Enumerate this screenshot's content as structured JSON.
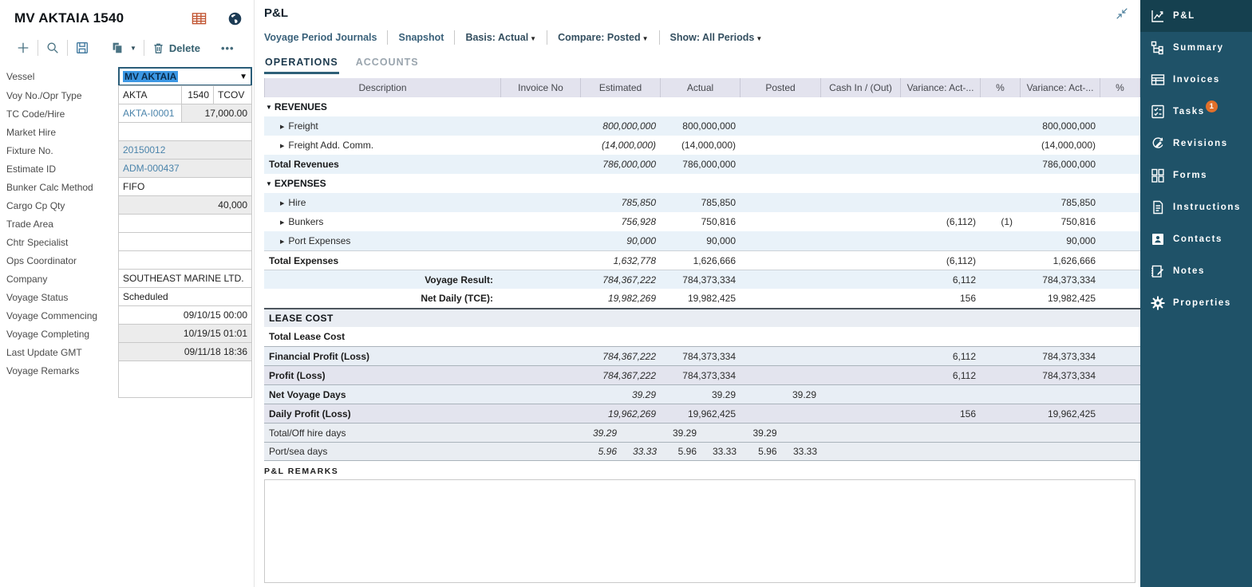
{
  "left_panel": {
    "title": "MV AKTAIA 1540",
    "toolbar": {
      "delete_label": "Delete"
    },
    "fields": [
      {
        "label": "Vessel",
        "type": "dropdown",
        "value": "MV AKTAIA"
      },
      {
        "label": "Voy No./Opr Type",
        "type": "triple",
        "parts": [
          {
            "v": "AKTA",
            "align": "left"
          },
          {
            "v": "1540",
            "align": "right"
          },
          {
            "v": "TCOV",
            "align": "left"
          }
        ]
      },
      {
        "label": "TC Code/Hire",
        "type": "pair",
        "left": {
          "v": "AKTA-I0001",
          "link": true
        },
        "right": {
          "v": "17,000.00",
          "gray": true
        }
      },
      {
        "label": "Market Hire",
        "type": "text",
        "value": ""
      },
      {
        "label": "Fixture No.",
        "type": "text",
        "value": "20150012",
        "link": true,
        "gray": true
      },
      {
        "label": "Estimate ID",
        "type": "text",
        "value": "ADM-000437",
        "link": true,
        "gray": true
      },
      {
        "label": "Bunker Calc Method",
        "type": "text",
        "value": "FIFO"
      },
      {
        "label": "Cargo Cp Qty",
        "type": "text",
        "value": "40,000",
        "gray": true,
        "align": "right"
      },
      {
        "label": "Trade Area",
        "type": "text",
        "value": ""
      },
      {
        "label": "Chtr Specialist",
        "type": "text",
        "value": ""
      },
      {
        "label": "Ops Coordinator",
        "type": "text",
        "value": ""
      },
      {
        "label": "Company",
        "type": "text",
        "value": "SOUTHEAST MARINE LTD."
      },
      {
        "label": "Voyage Status",
        "type": "text",
        "value": "Scheduled"
      },
      {
        "label": "Voyage Commencing",
        "type": "text",
        "value": "09/10/15 00:00",
        "align": "right"
      },
      {
        "label": "Voyage Completing",
        "type": "text",
        "value": "10/19/15 01:01",
        "gray": true,
        "align": "right"
      },
      {
        "label": "Last Update GMT",
        "type": "text",
        "value": "09/11/18 18:36",
        "gray": true,
        "align": "right"
      },
      {
        "label": "Voyage Remarks",
        "type": "textarea",
        "value": ""
      }
    ]
  },
  "pnl": {
    "title": "P&L",
    "links": [
      "Voyage Period Journals",
      "Snapshot"
    ],
    "filters": [
      {
        "label": "Basis: Actual"
      },
      {
        "label": "Compare: Posted"
      },
      {
        "label": "Show: All Periods"
      }
    ],
    "tabs": [
      {
        "label": "OPERATIONS",
        "active": true
      },
      {
        "label": "ACCOUNTS",
        "active": false
      }
    ],
    "columns": [
      "Description",
      "Invoice No",
      "Estimated",
      "Actual",
      "Posted",
      "Cash In / (Out)",
      "Variance: Act-...",
      "%",
      "Variance: Act-...",
      "%"
    ],
    "rows": [
      {
        "type": "section",
        "label": "REVENUES",
        "invoice": "",
        "est": "",
        "act": "",
        "posted": "",
        "cash": "",
        "var1": "",
        "pct1": "",
        "var2": "",
        "pct2": ""
      },
      {
        "type": "child",
        "label": "Freight",
        "invoice": "",
        "est": "800,000,000",
        "act": "800,000,000",
        "posted": "",
        "cash": "",
        "var1": "",
        "pct1": "",
        "var2": "800,000,000",
        "pct2": ""
      },
      {
        "type": "child",
        "label": "Freight Add. Comm.",
        "invoice": "",
        "est": "(14,000,000)",
        "act": "(14,000,000)",
        "posted": "",
        "cash": "",
        "var1": "",
        "pct1": "",
        "var2": "(14,000,000)",
        "pct2": ""
      },
      {
        "type": "total",
        "label": "Total Revenues",
        "invoice": "",
        "est": "786,000,000",
        "act": "786,000,000",
        "posted": "",
        "cash": "",
        "var1": "",
        "pct1": "",
        "var2": "786,000,000",
        "pct2": ""
      },
      {
        "type": "section",
        "label": "EXPENSES",
        "invoice": "",
        "est": "",
        "act": "",
        "posted": "",
        "cash": "",
        "var1": "",
        "pct1": "",
        "var2": "",
        "pct2": ""
      },
      {
        "type": "child",
        "label": "Hire",
        "invoice": "",
        "est": "785,850",
        "act": "785,850",
        "posted": "",
        "cash": "",
        "var1": "",
        "pct1": "",
        "var2": "785,850",
        "pct2": ""
      },
      {
        "type": "child",
        "label": "Bunkers",
        "invoice": "",
        "est": "756,928",
        "act": "750,816",
        "posted": "",
        "cash": "",
        "var1": "(6,112)",
        "pct1": "(1)",
        "var2": "750,816",
        "pct2": ""
      },
      {
        "type": "child",
        "label": "Port Expenses",
        "invoice": "",
        "est": "90,000",
        "act": "90,000",
        "posted": "",
        "cash": "",
        "var1": "",
        "pct1": "",
        "var2": "90,000",
        "pct2": ""
      },
      {
        "type": "total",
        "label": "Total Expenses",
        "invoice": "",
        "est": "1,632,778",
        "act": "1,626,666",
        "posted": "",
        "cash": "",
        "var1": "(6,112)",
        "pct1": "",
        "var2": "1,626,666",
        "pct2": ""
      },
      {
        "type": "result",
        "label": "Voyage Result:",
        "invoice": "",
        "est": "784,367,222",
        "act": "784,373,334",
        "posted": "",
        "cash": "",
        "var1": "6,112",
        "pct1": "",
        "var2": "784,373,334",
        "pct2": ""
      },
      {
        "type": "result",
        "label": "Net Daily (TCE):",
        "invoice": "",
        "est": "19,982,269",
        "act": "19,982,425",
        "posted": "",
        "cash": "",
        "var1": "156",
        "pct1": "",
        "var2": "19,982,425",
        "pct2": ""
      },
      {
        "type": "lease-header",
        "label": "LEASE COST",
        "invoice": "",
        "est": "",
        "act": "",
        "posted": "",
        "cash": "",
        "var1": "",
        "pct1": "",
        "var2": "",
        "pct2": ""
      },
      {
        "type": "lease-total",
        "label": "Total Lease Cost",
        "invoice": "",
        "est": "",
        "act": "",
        "posted": "",
        "cash": "",
        "var1": "",
        "pct1": "",
        "var2": "",
        "pct2": ""
      },
      {
        "type": "bold",
        "label": "Financial Profit (Loss)",
        "invoice": "",
        "est": "784,367,222",
        "act": "784,373,334",
        "posted": "",
        "cash": "",
        "var1": "6,112",
        "pct1": "",
        "var2": "784,373,334",
        "pct2": ""
      },
      {
        "type": "bold",
        "label": "Profit (Loss)",
        "invoice": "",
        "est": "784,367,222",
        "act": "784,373,334",
        "posted": "",
        "cash": "",
        "var1": "6,112",
        "pct1": "",
        "var2": "784,373,334",
        "pct2": ""
      },
      {
        "type": "bold",
        "label": "Net Voyage Days",
        "invoice": "",
        "est": "39.29",
        "act": "39.29",
        "posted": "39.29",
        "cash": "",
        "var1": "",
        "pct1": "",
        "var2": "",
        "pct2": ""
      },
      {
        "type": "bold",
        "label": "Daily Profit (Loss)",
        "invoice": "",
        "est": "19,962,269",
        "act": "19,962,425",
        "posted": "",
        "cash": "",
        "var1": "156",
        "pct1": "",
        "var2": "19,962,425",
        "pct2": ""
      },
      {
        "type": "split",
        "label": "Total/Off hire days",
        "invoice": "",
        "est": [
          "39.29",
          ""
        ],
        "act": [
          "39.29",
          ""
        ],
        "posted": [
          "39.29",
          ""
        ],
        "cash": "",
        "var1": "",
        "pct1": "",
        "var2": "",
        "pct2": ""
      },
      {
        "type": "split",
        "label": "Port/sea days",
        "invoice": "",
        "est": [
          "5.96",
          "33.33"
        ],
        "act": [
          "5.96",
          "33.33"
        ],
        "posted": [
          "5.96",
          "33.33"
        ],
        "cash": "",
        "var1": "",
        "pct1": "",
        "var2": "",
        "pct2": ""
      }
    ],
    "remarks_label": "P&L REMARKS",
    "remarks_value": ""
  },
  "sidebar": {
    "items": [
      {
        "label": "P&L",
        "icon": "chart-icon",
        "active": true
      },
      {
        "label": "Summary",
        "icon": "summary-icon",
        "active": false
      },
      {
        "label": "Invoices",
        "icon": "invoices-icon",
        "active": false
      },
      {
        "label": "Tasks",
        "icon": "tasks-icon",
        "active": false,
        "badge": "1"
      },
      {
        "label": "Revisions",
        "icon": "revisions-icon",
        "active": false
      },
      {
        "label": "Forms",
        "icon": "forms-icon",
        "active": false
      },
      {
        "label": "Instructions",
        "icon": "instructions-icon",
        "active": false
      },
      {
        "label": "Contacts",
        "icon": "contacts-icon",
        "active": false
      },
      {
        "label": "Notes",
        "icon": "notes-icon",
        "active": false
      },
      {
        "label": "Properties",
        "icon": "properties-icon",
        "active": false
      }
    ]
  },
  "colors": {
    "sidebar_bg": "#1f5268",
    "sidebar_active_bg": "#15404f",
    "badge_orange": "#e2702a",
    "link_blue": "#4b84ab",
    "selection_blue": "#3b97e4",
    "tab_underline": "#2e6078",
    "header_row_bg": "#e3e3ee",
    "stripe_blue": "#e9f2f9",
    "table_icon_orange": "#c0522f"
  }
}
